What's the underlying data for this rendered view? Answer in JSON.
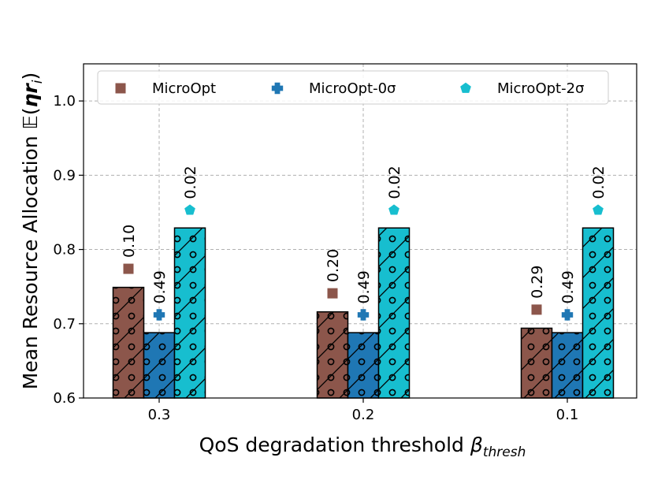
{
  "chart_data": {
    "type": "bar",
    "xlabel": "QoS degradation threshold",
    "xlabel_symbol": "β",
    "xlabel_subscript": "thresh",
    "ylabel": "Mean Resource Allocation 𝔼(",
    "ylabel_symbol": "ηr",
    "ylabel_subscript": "i",
    "ylabel_close": ")",
    "categories": [
      "0.3",
      "0.2",
      "0.1"
    ],
    "ylim": [
      0.6,
      1.05
    ],
    "yticks": [
      0.6,
      0.7,
      0.8,
      0.9,
      1.0
    ],
    "ytick_labels": [
      "0.6",
      "0.7",
      "0.8",
      "0.9",
      "1.0"
    ],
    "grid": true,
    "legend_position": "top",
    "series": [
      {
        "name": "MicroOpt",
        "color": "#8c564b",
        "marker": "square",
        "bar_values": [
          0.749,
          0.716,
          0.694
        ],
        "marker_values": [
          0.774,
          0.741,
          0.719
        ],
        "labels": [
          "0.10",
          "0.20",
          "0.29"
        ]
      },
      {
        "name": "MicroOpt-0σ",
        "color": "#1f77b4",
        "marker": "plus",
        "bar_values": [
          0.688,
          0.688,
          0.688
        ],
        "marker_values": [
          0.712,
          0.712,
          0.712
        ],
        "labels": [
          "0.49",
          "0.49",
          "0.49"
        ]
      },
      {
        "name": "MicroOpt-2σ",
        "color": "#17becf",
        "marker": "pentagon",
        "bar_values": [
          0.829,
          0.829,
          0.829
        ],
        "marker_values": [
          0.853,
          0.853,
          0.853
        ],
        "labels": [
          "0.02",
          "0.02",
          "0.02"
        ]
      }
    ]
  }
}
